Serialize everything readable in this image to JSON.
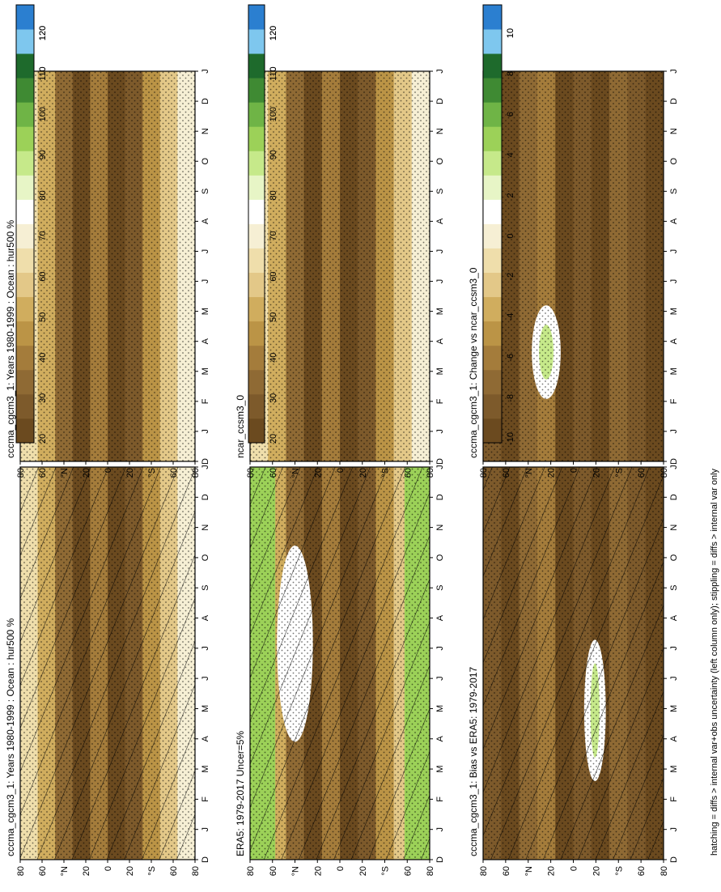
{
  "footnote": "hatching = diffs > internal var+obs uncertainty (left column only); stippling = diffs > internal var only",
  "colors": {
    "mean_scale": [
      "#6b4a1f",
      "#7d5a2b",
      "#8f6a34",
      "#a47c3b",
      "#bb9446",
      "#d0ad5e",
      "#e3c888",
      "#efdeab",
      "#f6efd4",
      "#ffffff",
      "#e7f5c6",
      "#c6e98a",
      "#9cd158",
      "#6fb446",
      "#3f8a33",
      "#1e6a2c",
      "#7ec7ee",
      "#2b7fd0"
    ],
    "diff_scale": [
      "#6b4a1f",
      "#7d5a2b",
      "#8f6a34",
      "#a47c3b",
      "#bb9446",
      "#d0ad5e",
      "#e3c888",
      "#efdeab",
      "#f6efd4",
      "#ffffff",
      "#e7f5c6",
      "#c6e98a",
      "#9cd158",
      "#6fb446",
      "#3f8a33",
      "#1e6a2c",
      "#7ec7ee",
      "#2b7fd0"
    ]
  },
  "chart_data": [
    {
      "type": "heatmap",
      "title": "cccma_cgcm3_1: Years 1980-1999 : Ocean : hur500 %",
      "x": [
        "D",
        "J",
        "F",
        "M",
        "A",
        "M",
        "J",
        "J",
        "A",
        "S",
        "O",
        "N",
        "D",
        "J"
      ],
      "y": [
        "80",
        "60",
        "°N",
        "20",
        "0",
        "20",
        "°S",
        "60",
        "80"
      ],
      "colorbar": {
        "ticks": [
          "120",
          "110",
          "100",
          "90",
          "80",
          "70",
          "60",
          "50",
          "40",
          "30",
          "20"
        ]
      },
      "hatching": true,
      "stippling": true
    },
    {
      "type": "heatmap",
      "title": "cccma_cgcm3_1: Years 1980-1999 : Ocean : hur500 %",
      "x": [
        "D",
        "J",
        "F",
        "M",
        "A",
        "M",
        "J",
        "J",
        "A",
        "S",
        "O",
        "N",
        "D",
        "J"
      ],
      "y": [
        "80",
        "60",
        "°N",
        "20",
        "0",
        "20",
        "°S",
        "60",
        "80"
      ],
      "colorbar": {
        "ticks": [
          "120",
          "110",
          "100",
          "90",
          "80",
          "70",
          "60",
          "50",
          "40",
          "30",
          "20"
        ]
      },
      "hatching": false,
      "stippling": true
    },
    {
      "type": "heatmap",
      "title": "ERA5: 1979-2017 Uncer=5%",
      "x": [
        "D",
        "J",
        "F",
        "M",
        "A",
        "M",
        "J",
        "J",
        "A",
        "S",
        "O",
        "N",
        "D",
        "J"
      ],
      "y": [
        "80",
        "60",
        "°N",
        "20",
        "0",
        "20",
        "°S",
        "60",
        "80"
      ],
      "colorbar": {
        "ticks": [
          "120",
          "110",
          "100",
          "90",
          "80",
          "70",
          "60",
          "50",
          "40",
          "30",
          "20"
        ]
      },
      "hatching": true,
      "stippling": true
    },
    {
      "type": "heatmap",
      "title": "ncar_ccsm3_0",
      "x": [
        "D",
        "J",
        "F",
        "M",
        "A",
        "M",
        "J",
        "J",
        "A",
        "S",
        "O",
        "N",
        "D",
        "J"
      ],
      "y": [
        "80",
        "60",
        "°N",
        "20",
        "0",
        "20",
        "°S",
        "60",
        "80"
      ],
      "colorbar": {
        "ticks": [
          "120",
          "110",
          "100",
          "90",
          "80",
          "70",
          "60",
          "50",
          "40",
          "30",
          "20"
        ]
      },
      "hatching": false,
      "stippling": true
    },
    {
      "type": "heatmap",
      "title": "cccma_cgcm3_1: Bias vs ERA5: 1979-2017",
      "x": [
        "D",
        "J",
        "F",
        "M",
        "A",
        "M",
        "J",
        "J",
        "A",
        "S",
        "O",
        "N",
        "D",
        "J"
      ],
      "y": [
        "80",
        "60",
        "°N",
        "20",
        "0",
        "20",
        "°S",
        "60",
        "80"
      ],
      "colorbar": {
        "ticks": [
          "10",
          "8",
          "6",
          "4",
          "2",
          "0",
          "-2",
          "-4",
          "-6",
          "-8",
          "-10"
        ]
      },
      "hatching": true,
      "stippling": true
    },
    {
      "type": "heatmap",
      "title": "cccma_cgcm3_1: Change vs ncar_ccsm3_0",
      "x": [
        "D",
        "J",
        "F",
        "M",
        "A",
        "M",
        "J",
        "J",
        "A",
        "S",
        "O",
        "N",
        "D",
        "J"
      ],
      "y": [
        "80",
        "60",
        "°N",
        "20",
        "0",
        "20",
        "°S",
        "60",
        "80"
      ],
      "colorbar": {
        "ticks": [
          "10",
          "8",
          "6",
          "4",
          "2",
          "0",
          "-2",
          "-4",
          "-6",
          "-8",
          "-10"
        ]
      },
      "hatching": false,
      "stippling": true
    }
  ]
}
